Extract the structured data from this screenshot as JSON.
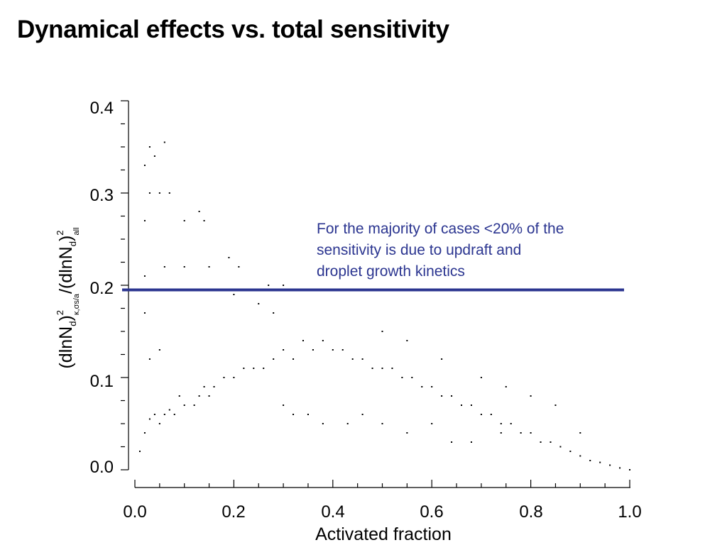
{
  "slide": {
    "title": "Dynamical effects vs. total sensitivity"
  },
  "chart_data": {
    "type": "scatter",
    "title": "",
    "xlabel": "Activated fraction",
    "ylabel_parts": {
      "open": "(dlnN",
      "sub_d1": "d",
      "close1": ")",
      "sup1": "2",
      "sub_kappa": "κ,σs/a",
      "slash": "/(dlnN",
      "sub_d2": "d",
      "close2": ")",
      "sup2": "2",
      "sub_all": "all"
    },
    "xlim": [
      0.0,
      1.0
    ],
    "ylim": [
      0.0,
      0.4
    ],
    "x_ticks": [
      "0.0",
      "0.2",
      "0.4",
      "0.6",
      "0.8",
      "1.0"
    ],
    "y_ticks": [
      "0.0",
      "0.1",
      "0.2",
      "0.3",
      "0.4"
    ],
    "grid": false,
    "legend": "none",
    "point_color": "#000000",
    "reference_line": {
      "y": 0.195,
      "color": "#2b3590"
    },
    "annotation": {
      "lines": [
        "For the majority of cases <20% of the",
        "sensitivity is due to updraft and",
        "droplet growth kinetics"
      ],
      "color": "#2b3590"
    },
    "series": [
      {
        "points": [
          [
            0.01,
            0.02
          ],
          [
            0.02,
            0.04
          ],
          [
            0.03,
            0.055
          ],
          [
            0.05,
            0.05
          ],
          [
            0.04,
            0.06
          ],
          [
            0.06,
            0.06
          ],
          [
            0.07,
            0.065
          ],
          [
            0.08,
            0.06
          ],
          [
            0.1,
            0.07
          ],
          [
            0.09,
            0.08
          ],
          [
            0.12,
            0.07
          ],
          [
            0.13,
            0.08
          ],
          [
            0.15,
            0.08
          ],
          [
            0.14,
            0.09
          ],
          [
            0.16,
            0.09
          ],
          [
            0.18,
            0.1
          ],
          [
            0.2,
            0.1
          ],
          [
            0.22,
            0.11
          ],
          [
            0.24,
            0.11
          ],
          [
            0.26,
            0.11
          ],
          [
            0.28,
            0.12
          ],
          [
            0.3,
            0.13
          ],
          [
            0.32,
            0.12
          ],
          [
            0.34,
            0.14
          ],
          [
            0.36,
            0.13
          ],
          [
            0.38,
            0.14
          ],
          [
            0.4,
            0.13
          ],
          [
            0.42,
            0.13
          ],
          [
            0.44,
            0.12
          ],
          [
            0.46,
            0.12
          ],
          [
            0.48,
            0.11
          ],
          [
            0.5,
            0.11
          ],
          [
            0.52,
            0.11
          ],
          [
            0.54,
            0.1
          ],
          [
            0.56,
            0.1
          ],
          [
            0.58,
            0.09
          ],
          [
            0.6,
            0.09
          ],
          [
            0.62,
            0.08
          ],
          [
            0.64,
            0.08
          ],
          [
            0.66,
            0.07
          ],
          [
            0.68,
            0.07
          ],
          [
            0.7,
            0.06
          ],
          [
            0.72,
            0.06
          ],
          [
            0.74,
            0.05
          ],
          [
            0.76,
            0.05
          ],
          [
            0.78,
            0.04
          ],
          [
            0.8,
            0.04
          ],
          [
            0.82,
            0.03
          ],
          [
            0.84,
            0.03
          ],
          [
            0.86,
            0.025
          ],
          [
            0.88,
            0.02
          ],
          [
            0.9,
            0.015
          ],
          [
            0.92,
            0.01
          ],
          [
            0.94,
            0.008
          ],
          [
            0.96,
            0.005
          ],
          [
            0.98,
            0.002
          ],
          [
            1.0,
            0.0
          ],
          [
            0.02,
            0.33
          ],
          [
            0.03,
            0.35
          ],
          [
            0.04,
            0.34
          ],
          [
            0.06,
            0.355
          ],
          [
            0.03,
            0.3
          ],
          [
            0.05,
            0.3
          ],
          [
            0.07,
            0.3
          ],
          [
            0.02,
            0.27
          ],
          [
            0.1,
            0.27
          ],
          [
            0.14,
            0.27
          ],
          [
            0.13,
            0.28
          ],
          [
            0.02,
            0.21
          ],
          [
            0.06,
            0.22
          ],
          [
            0.1,
            0.22
          ],
          [
            0.15,
            0.22
          ],
          [
            0.19,
            0.23
          ],
          [
            0.21,
            0.22
          ],
          [
            0.25,
            0.18
          ],
          [
            0.27,
            0.2
          ],
          [
            0.3,
            0.2
          ],
          [
            0.02,
            0.17
          ],
          [
            0.05,
            0.13
          ],
          [
            0.03,
            0.12
          ],
          [
            0.2,
            0.19
          ],
          [
            0.28,
            0.17
          ],
          [
            0.3,
            0.07
          ],
          [
            0.32,
            0.06
          ],
          [
            0.35,
            0.06
          ],
          [
            0.38,
            0.05
          ],
          [
            0.43,
            0.05
          ],
          [
            0.46,
            0.06
          ],
          [
            0.5,
            0.05
          ],
          [
            0.55,
            0.04
          ],
          [
            0.6,
            0.05
          ],
          [
            0.64,
            0.03
          ],
          [
            0.68,
            0.03
          ],
          [
            0.74,
            0.04
          ],
          [
            0.5,
            0.15
          ],
          [
            0.55,
            0.14
          ],
          [
            0.62,
            0.12
          ],
          [
            0.7,
            0.1
          ],
          [
            0.75,
            0.09
          ],
          [
            0.8,
            0.08
          ],
          [
            0.85,
            0.07
          ],
          [
            0.9,
            0.04
          ]
        ]
      }
    ]
  }
}
